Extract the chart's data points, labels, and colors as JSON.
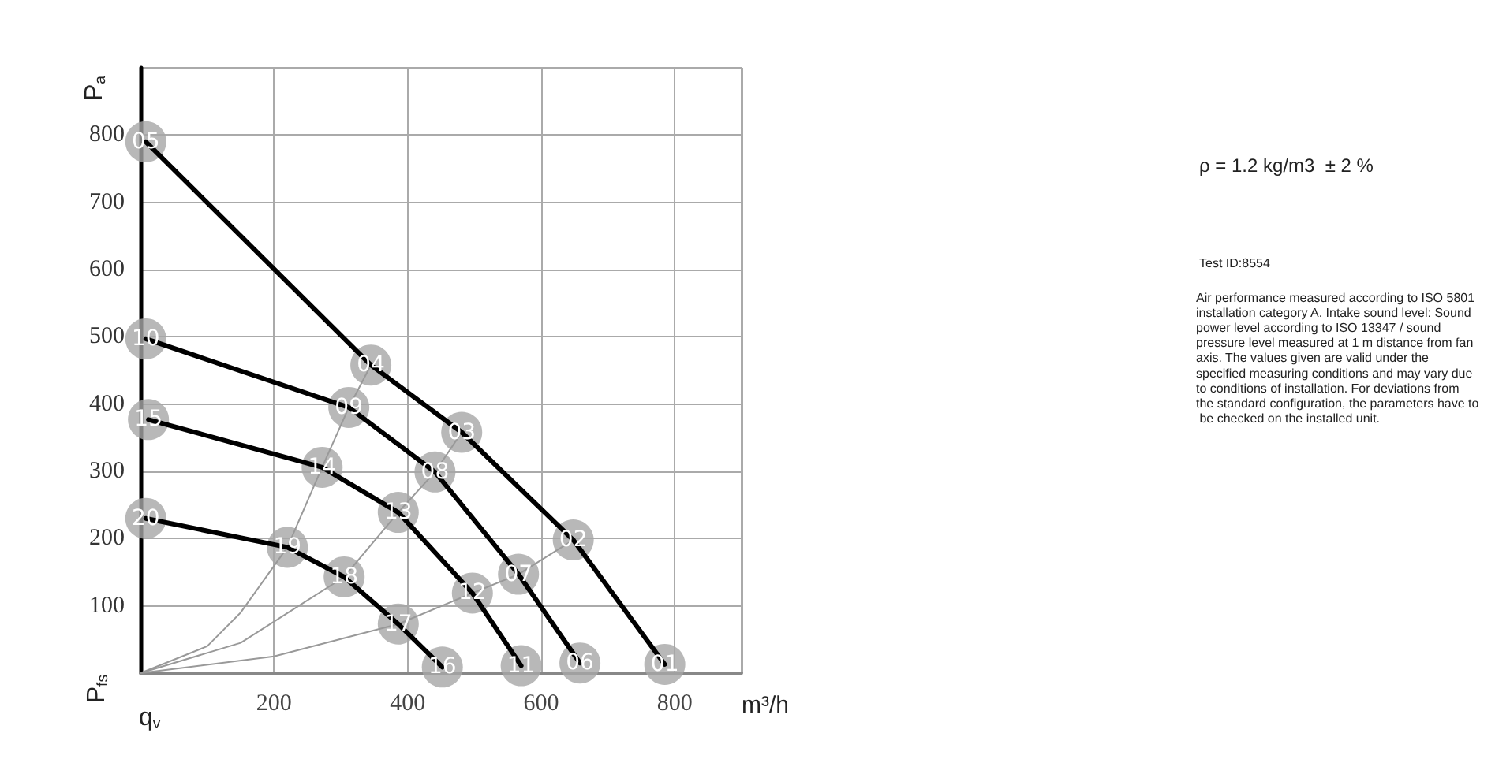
{
  "chart_data": {
    "type": "line",
    "xlabel": "m³/h",
    "ylabel": "P$_{a}$",
    "annotations": [
      "P$_{fs}$",
      "q$_{v}$",
      "ρ = 1.2 kg/m3  ± 2 %",
      "Test ID:8554",
      "Air performance measured according to ISO 5801 installation category A. Intake sound level: Sound power level according to ISO 13347 / sound pressure level measured at 1 m distance from fan axis. The values given are valid under the specified measuring conditions and may vary due to conditions of installation. For deviations from the standard configuration, the parameters have to be checked on the installed unit.",
      {
        "text": "05",
        "x": 8,
        "y": 790
      },
      {
        "text": "04",
        "x": 345,
        "y": 458
      },
      {
        "text": "03",
        "x": 481,
        "y": 358
      },
      {
        "text": "02",
        "x": 648,
        "y": 198
      },
      {
        "text": "01",
        "x": 785,
        "y": 13
      },
      {
        "text": "10",
        "x": 8,
        "y": 497
      },
      {
        "text": "09",
        "x": 312,
        "y": 395
      },
      {
        "text": "08",
        "x": 441,
        "y": 299
      },
      {
        "text": "07",
        "x": 566,
        "y": 147
      },
      {
        "text": "06",
        "x": 658,
        "y": 15
      },
      {
        "text": "15",
        "x": 12,
        "y": 377
      },
      {
        "text": "14",
        "x": 272,
        "y": 306
      },
      {
        "text": "13",
        "x": 386,
        "y": 239
      },
      {
        "text": "12",
        "x": 497,
        "y": 119
      },
      {
        "text": "11",
        "x": 570,
        "y": 11
      },
      {
        "text": "20",
        "x": 8,
        "y": 230
      },
      {
        "text": "19",
        "x": 220,
        "y": 187
      },
      {
        "text": "18",
        "x": 305,
        "y": 143
      },
      {
        "text": "17",
        "x": 386,
        "y": 73
      },
      {
        "text": "16",
        "x": 452,
        "y": 9
      }
    ],
    "xlim": [
      0,
      900
    ],
    "ylim": [
      0,
      900
    ],
    "xticks": [
      {
        "value": 0,
        "label": null
      },
      200,
      400,
      600,
      800
    ],
    "yticks": [
      {
        "value": 0,
        "label": null
      },
      100,
      200,
      300,
      400,
      500,
      600,
      700,
      800
    ],
    "grid": true,
    "series": [
      {
        "color": "#999999",
        "marker": "none",
        "x": [
          0,
          100,
          150,
          220,
          272,
          312,
          345
        ],
        "values": [
          0,
          40,
          90,
          187,
          306,
          395,
          458
        ]
      },
      {
        "color": "#999999",
        "marker": "none",
        "x": [
          0,
          150,
          305,
          386,
          441,
          481
        ],
        "values": [
          0,
          45,
          143,
          239,
          299,
          358
        ]
      },
      {
        "color": "#999999",
        "marker": "none",
        "x": [
          0,
          200,
          386,
          497,
          566,
          648
        ],
        "values": [
          0,
          25,
          73,
          119,
          147,
          198
        ]
      },
      {
        "color": "#000000",
        "marker": "none",
        "x": [
          8,
          345,
          481,
          648,
          785
        ],
        "values": [
          790,
          458,
          358,
          198,
          13
        ]
      },
      {
        "color": "#000000",
        "marker": "none",
        "x": [
          8,
          312,
          441,
          566,
          658
        ],
        "values": [
          497,
          395,
          299,
          147,
          15
        ]
      },
      {
        "color": "#000000",
        "marker": "none",
        "x": [
          12,
          272,
          386,
          497,
          570
        ],
        "values": [
          377,
          306,
          239,
          119,
          11
        ]
      },
      {
        "color": "#000000",
        "marker": "none",
        "x": [
          8,
          220,
          305,
          386,
          452
        ],
        "values": [
          230,
          187,
          143,
          73,
          9
        ]
      },
      {
        "type": "scatter",
        "color": "#a6a6a6",
        "marker": "circle",
        "x": [
          8,
          345,
          481,
          648,
          785,
          8,
          312,
          441,
          566,
          658,
          12,
          272,
          386,
          497,
          570,
          8,
          220,
          305,
          386,
          452
        ],
        "values": [
          790,
          458,
          358,
          198,
          13,
          497,
          395,
          299,
          147,
          15,
          377,
          306,
          239,
          119,
          11,
          230,
          187,
          143,
          73,
          9
        ]
      }
    ]
  }
}
